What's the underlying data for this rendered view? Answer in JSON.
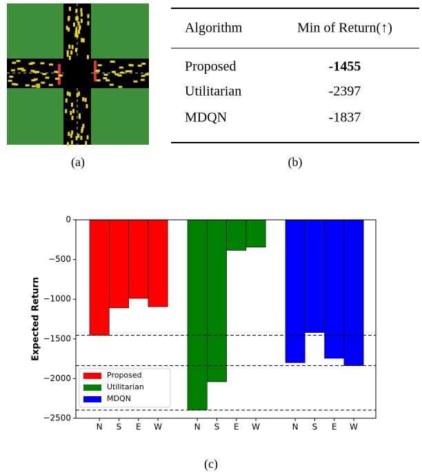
{
  "panel_a": {
    "caption": "(a)"
  },
  "table": {
    "caption": "(b)",
    "header": [
      "Algorithm",
      "Min of Return(↑)"
    ],
    "rows": [
      [
        "Proposed",
        "-1455"
      ],
      [
        "Utilitarian",
        "-2397"
      ],
      [
        "MDQN",
        "-1837"
      ]
    ]
  },
  "chart_data": {
    "type": "grouped_bar",
    "caption": "(c)",
    "y_label": "Expected Return",
    "categories": [
      "N",
      "S",
      "E",
      "W"
    ],
    "series": [
      {
        "name": "Proposed",
        "color": "#ff0000",
        "values": [
          -1455,
          -1110,
          -990,
          -1095
        ]
      },
      {
        "name": "Utilitarian",
        "color": "#008000",
        "values": [
          -2397,
          -2040,
          -385,
          -345
        ]
      },
      {
        "name": "MDQN",
        "color": "#0000ff",
        "values": [
          -1800,
          -1420,
          -1745,
          -1837
        ]
      }
    ],
    "reference_lines": [
      -1455,
      -1837,
      -2397
    ],
    "ylim": [
      -2500,
      0
    ],
    "yticks": [
      0,
      {
        "value": -500,
        "label": "−500"
      },
      {
        "value": -1000,
        "label": "−1000"
      },
      {
        "value": -1500,
        "label": "−1500"
      },
      {
        "value": -2000,
        "label": "−2000"
      },
      {
        "value": -2500,
        "label": "−2500"
      }
    ],
    "legend": "lower left"
  }
}
